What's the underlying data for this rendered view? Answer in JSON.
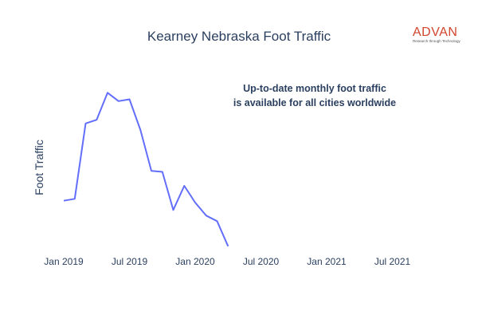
{
  "header": {
    "title": "Kearney Nebraska Foot Traffic"
  },
  "logo": {
    "word": "ADVAN",
    "tagline": "Research through Technology",
    "color": "#d2452c"
  },
  "annotation": {
    "line1": "Up-to-date monthly foot traffic",
    "line2": "is available for all cities worldwide"
  },
  "chart_data": {
    "type": "line",
    "title": "Kearney Nebraska Foot Traffic",
    "xlabel": "",
    "ylabel": "Foot Traffic",
    "x_tick_labels": [
      "Jan 2019",
      "Jul 2019",
      "Jan 2020",
      "Jul 2020",
      "Jan 2021",
      "Jul 2021"
    ],
    "y_ticks_shown": false,
    "grid": false,
    "line_color": "#636efa",
    "series": [
      {
        "x": [
          "2019-01",
          "2019-02",
          "2019-03",
          "2019-04",
          "2019-05",
          "2019-06",
          "2019-07",
          "2019-08",
          "2019-09",
          "2019-10",
          "2019-11",
          "2019-12",
          "2020-01",
          "2020-02",
          "2020-03",
          "2020-04"
        ],
        "values": [
          50,
          52,
          133,
          137,
          166,
          157,
          159,
          126,
          82,
          81,
          40,
          66,
          48,
          34,
          28,
          1
        ]
      }
    ]
  }
}
